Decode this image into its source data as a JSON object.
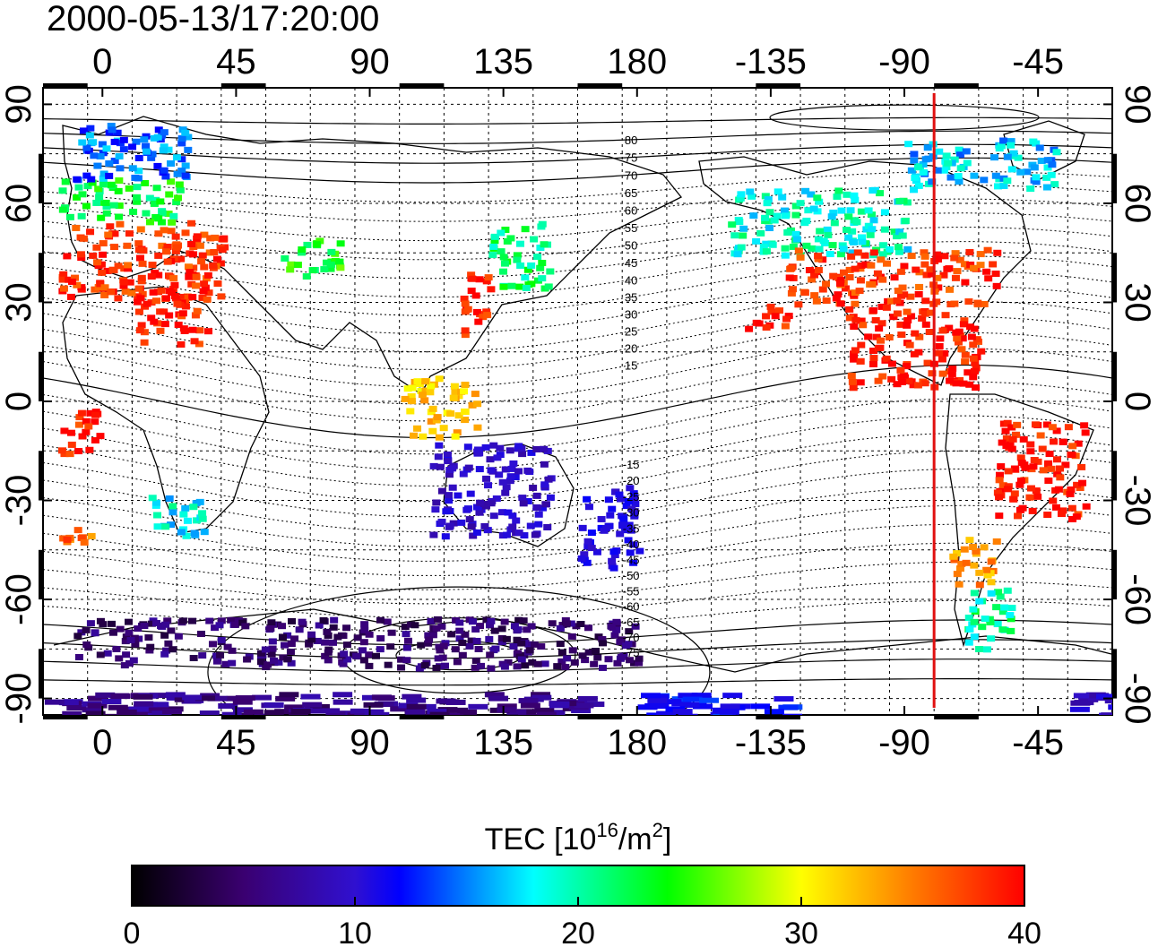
{
  "title": "2000-05-13/17:20:00",
  "map": {
    "lon_ticks": [
      "0",
      "45",
      "90",
      "135",
      "180",
      "-135",
      "-90",
      "-45"
    ],
    "lon_tick_values": [
      0,
      45,
      90,
      135,
      180,
      225,
      270,
      315
    ],
    "lat_ticks": [
      "90",
      "60",
      "30",
      "0",
      "-30",
      "-60",
      "-90"
    ],
    "lat_tick_values": [
      90,
      60,
      30,
      0,
      -30,
      -60,
      -90
    ],
    "lon_range": [
      -20,
      340
    ],
    "lat_range": [
      -95,
      95
    ],
    "meridian_marker_lon": 280,
    "meridian_marker_color": "#e01010",
    "magnetic_latitude_labels": [
      "80",
      "75",
      "70",
      "65",
      "60",
      "55",
      "50",
      "45",
      "40",
      "35",
      "30",
      "25",
      "20",
      "15",
      "-15",
      "-20",
      "-25",
      "-30",
      "-35",
      "-40",
      "-45",
      "-50",
      "-55",
      "-60",
      "-65",
      "-70",
      "-75"
    ]
  },
  "colorbar": {
    "label_main": "TEC  [10",
    "label_sup1": "16",
    "label_mid": "/m",
    "label_sup2": "2",
    "label_end": "]",
    "ticks": [
      "0",
      "10",
      "20",
      "30",
      "40"
    ],
    "tick_values": [
      0,
      10,
      20,
      30,
      40
    ],
    "range": [
      0,
      40
    ],
    "stops": [
      "#000000",
      "#3a0070",
      "#3010d0",
      "#0000ff",
      "#00ffff",
      "#00ff00",
      "#ffff00",
      "#ff8000",
      "#ff0000"
    ]
  },
  "tec_regions": [
    {
      "lon": [
        -15,
        40
      ],
      "lat": [
        32,
        55
      ],
      "tec": 38
    },
    {
      "lon": [
        -15,
        25
      ],
      "lat": [
        55,
        68
      ],
      "tec": 24
    },
    {
      "lon": [
        -10,
        30
      ],
      "lat": [
        68,
        85
      ],
      "tec": 17
    },
    {
      "lon": [
        10,
        35
      ],
      "lat": [
        18,
        40
      ],
      "tec": 39
    },
    {
      "lon": [
        60,
        80
      ],
      "lat": [
        38,
        50
      ],
      "tec": 25
    },
    {
      "lon": [
        120,
        130
      ],
      "lat": [
        20,
        40
      ],
      "tec": 39
    },
    {
      "lon": [
        130,
        150
      ],
      "lat": [
        35,
        55
      ],
      "tec": 23
    },
    {
      "lon": [
        100,
        125
      ],
      "lat": [
        -10,
        8
      ],
      "tec": 32
    },
    {
      "lon": [
        110,
        150
      ],
      "lat": [
        -40,
        -12
      ],
      "tec": 10
    },
    {
      "lon": [
        160,
        180
      ],
      "lat": [
        -50,
        -25
      ],
      "tec": 12
    },
    {
      "lon": [
        15,
        35
      ],
      "lat": [
        -40,
        -28
      ],
      "tec": 20
    },
    {
      "lon": [
        -15,
        -5
      ],
      "lat": [
        -42,
        -38
      ],
      "tec": 36
    },
    {
      "lon": [
        -15,
        0
      ],
      "lat": [
        -15,
        -2
      ],
      "tec": 39
    },
    {
      "lon": [
        -10,
        180
      ],
      "lat": [
        -80,
        -65
      ],
      "tec": 5
    },
    {
      "lon": [
        -20,
        165
      ],
      "lat": [
        -95,
        -88
      ],
      "tec": 6
    },
    {
      "lon": [
        210,
        270
      ],
      "lat": [
        45,
        65
      ],
      "tec": 21
    },
    {
      "lon": [
        230,
        300
      ],
      "lat": [
        30,
        47
      ],
      "tec": 38
    },
    {
      "lon": [
        250,
        295
      ],
      "lat": [
        5,
        30
      ],
      "tec": 39
    },
    {
      "lon": [
        300,
        330
      ],
      "lat": [
        -35,
        -5
      ],
      "tec": 39
    },
    {
      "lon": [
        285,
        300
      ],
      "lat": [
        -55,
        -40
      ],
      "tec": 34
    },
    {
      "lon": [
        290,
        305
      ],
      "lat": [
        -75,
        -55
      ],
      "tec": 22
    },
    {
      "lon": [
        270,
        320
      ],
      "lat": [
        65,
        80
      ],
      "tec": 19
    },
    {
      "lon": [
        180,
        230
      ],
      "lat": [
        -95,
        -88
      ],
      "tec": 14
    },
    {
      "lon": [
        325,
        345
      ],
      "lat": [
        -95,
        -88
      ],
      "tec": 10
    },
    {
      "lon": [
        215,
        230
      ],
      "lat": [
        22,
        30
      ],
      "tec": 39
    }
  ]
}
